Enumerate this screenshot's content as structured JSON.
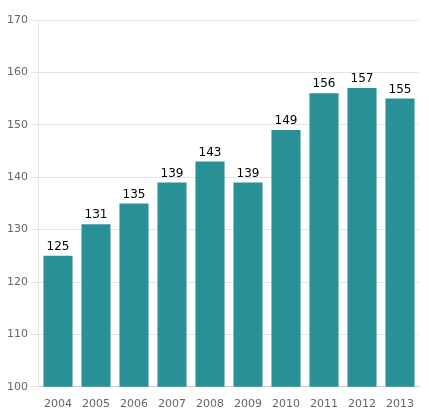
{
  "chart_data": {
    "type": "bar",
    "categories": [
      "2004",
      "2005",
      "2006",
      "2007",
      "2008",
      "2009",
      "2010",
      "2011",
      "2012",
      "2013"
    ],
    "values": [
      125,
      131,
      135,
      139,
      143,
      139,
      149,
      156,
      157,
      155
    ],
    "color": "#2a9098",
    "ylim": [
      100,
      170
    ],
    "yticks": [
      100,
      110,
      120,
      130,
      140,
      150,
      160,
      170
    ],
    "grid": true,
    "data_labels": true
  }
}
